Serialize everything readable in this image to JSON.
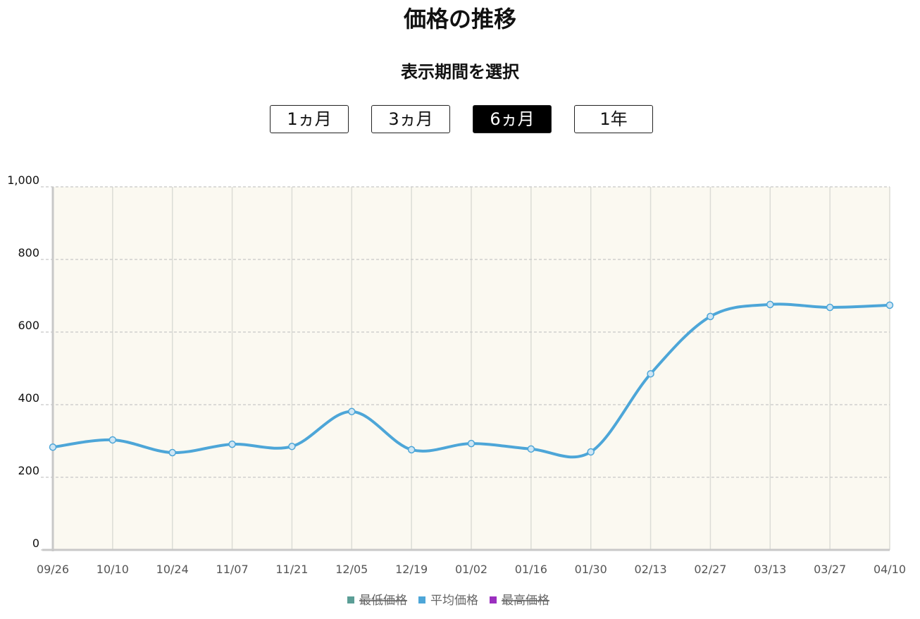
{
  "heading": "価格の推移",
  "period_label": "表示期間を選択",
  "periods": [
    "1ヵ月",
    "3ヵ月",
    "6ヵ月",
    "1年"
  ],
  "selected_period": "6ヵ月",
  "chart_data": {
    "type": "line",
    "categories": [
      "09/26",
      "10/10",
      "10/24",
      "11/07",
      "11/21",
      "12/05",
      "12/19",
      "01/02",
      "01/16",
      "01/30",
      "02/13",
      "02/27",
      "03/13",
      "03/27",
      "04/10"
    ],
    "series": [
      {
        "name": "最低価格",
        "color": "#5b9e96",
        "hidden": true
      },
      {
        "name": "平均価格",
        "color": "#4da6d8",
        "values": [
          283,
          303,
          268,
          291,
          285,
          381,
          276,
          293,
          278,
          270,
          485,
          643,
          676,
          668,
          674
        ]
      },
      {
        "name": "最高価格",
        "color": "#9b2fbf",
        "hidden": true
      }
    ],
    "ylim": [
      0,
      1000
    ],
    "yticks": [
      0,
      200,
      400,
      600,
      800,
      {
        "value": 1000,
        "label": "1,000"
      }
    ],
    "grid": true,
    "background": "#fbf9f1"
  }
}
